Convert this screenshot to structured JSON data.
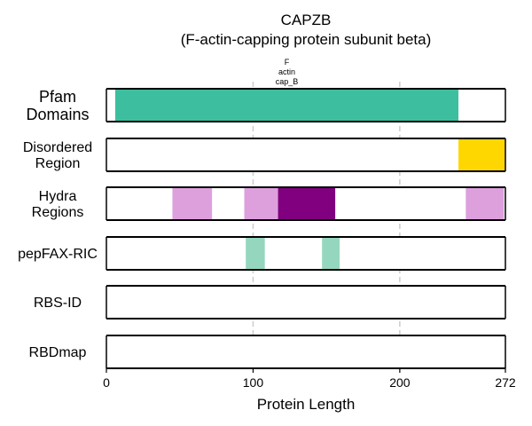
{
  "chart_data": {
    "type": "bar",
    "title": "CAPZB",
    "subtitle": "(F-actin-capping protein subunit beta)",
    "xlabel": "Protein Length",
    "xlim": [
      0,
      272
    ],
    "xticks": [
      0,
      100,
      200,
      272
    ],
    "gridlines": [
      100,
      200
    ],
    "rows": [
      {
        "label": [
          "Pfam",
          "Domains"
        ],
        "segments": [
          {
            "start": 6,
            "end": 240,
            "color": "#3dbf9f",
            "annotation": [
              "F",
              "actin",
              "cap_B"
            ]
          }
        ]
      },
      {
        "label": [
          "Disordered",
          "Region"
        ],
        "segments": [
          {
            "start": 240,
            "end": 272,
            "color": "#ffd700"
          }
        ]
      },
      {
        "label": [
          "Hydra",
          "Regions"
        ],
        "segments": [
          {
            "start": 45,
            "end": 72,
            "color": "#dda0dd"
          },
          {
            "start": 94,
            "end": 117,
            "color": "#dda0dd"
          },
          {
            "start": 117,
            "end": 156,
            "color": "#800080"
          },
          {
            "start": 245,
            "end": 271,
            "color": "#dda0dd"
          }
        ]
      },
      {
        "label": [
          "pepFAX-RIC"
        ],
        "segments": [
          {
            "start": 95,
            "end": 108,
            "color": "#94d7be"
          },
          {
            "start": 147,
            "end": 159,
            "color": "#94d7be"
          }
        ]
      },
      {
        "label": [
          "RBS-ID"
        ],
        "segments": []
      },
      {
        "label": [
          "RBDmap"
        ],
        "segments": []
      }
    ]
  }
}
